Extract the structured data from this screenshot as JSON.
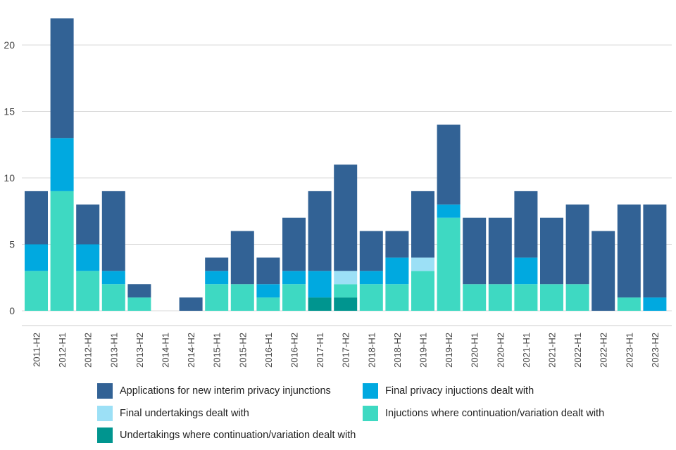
{
  "chart_data": {
    "type": "bar",
    "stacked": true,
    "title": "",
    "xlabel": "",
    "ylabel": "",
    "ylim": [
      0,
      22
    ],
    "yticks": [
      0,
      5,
      10,
      15,
      20
    ],
    "grid": true,
    "legend_position": "bottom",
    "categories": [
      "2011-H2",
      "2012-H1",
      "2012-H2",
      "2013-H1",
      "2013-H2",
      "2014-H1",
      "2014-H2",
      "2015-H1",
      "2015-H2",
      "2016-H1",
      "2016-H2",
      "2017-H1",
      "2017-H2",
      "2018-H1",
      "2018-H2",
      "2019-H1",
      "2019-H2",
      "2020-H1",
      "2020-H2",
      "2021-H1",
      "2021-H2",
      "2022-H1",
      "2022-H2",
      "2023-H1",
      "2023-H2"
    ],
    "series": [
      {
        "name": "Undertakings where continuation/variation dealt with",
        "color": "#00958f",
        "values": [
          0,
          0,
          0,
          0,
          0,
          0,
          0,
          0,
          0,
          0,
          0,
          1,
          1,
          0,
          0,
          0,
          0,
          0,
          0,
          0,
          0,
          0,
          0,
          0,
          0
        ]
      },
      {
        "name": "Injuctions where continuation/variation dealt with",
        "color": "#3ed9c2",
        "values": [
          3,
          9,
          3,
          2,
          1,
          0,
          0,
          2,
          2,
          1,
          2,
          0,
          1,
          2,
          2,
          3,
          7,
          2,
          2,
          2,
          2,
          2,
          0,
          1,
          0
        ]
      },
      {
        "name": "Final undertakings dealt with",
        "color": "#9ce0f6",
        "values": [
          0,
          0,
          0,
          0,
          0,
          0,
          0,
          0,
          0,
          0,
          0,
          0,
          1,
          0,
          0,
          1,
          0,
          0,
          0,
          0,
          0,
          0,
          0,
          0,
          0
        ]
      },
      {
        "name": "Final privacy injuctions dealt with",
        "color": "#00a9e0",
        "values": [
          2,
          4,
          2,
          1,
          0,
          0,
          0,
          1,
          0,
          1,
          1,
          2,
          0,
          1,
          2,
          0,
          1,
          0,
          0,
          2,
          0,
          0,
          0,
          0,
          1
        ]
      },
      {
        "name": "Applications for new interim privacy injunctions",
        "color": "#326295",
        "values": [
          4,
          9,
          3,
          6,
          1,
          0,
          1,
          1,
          4,
          2,
          4,
          6,
          8,
          3,
          2,
          5,
          6,
          5,
          5,
          5,
          5,
          6,
          6,
          7,
          7
        ]
      }
    ]
  },
  "legend": [
    {
      "label": "Applications for new interim privacy injunctions",
      "color": "#326295"
    },
    {
      "label": "Final privacy injuctions dealt with",
      "color": "#00a9e0"
    },
    {
      "label": "Final undertakings dealt with",
      "color": "#9ce0f6"
    },
    {
      "label": "Injuctions where continuation/variation dealt with",
      "color": "#3ed9c2"
    },
    {
      "label": "Undertakings where continuation/variation dealt with",
      "color": "#00958f"
    }
  ]
}
